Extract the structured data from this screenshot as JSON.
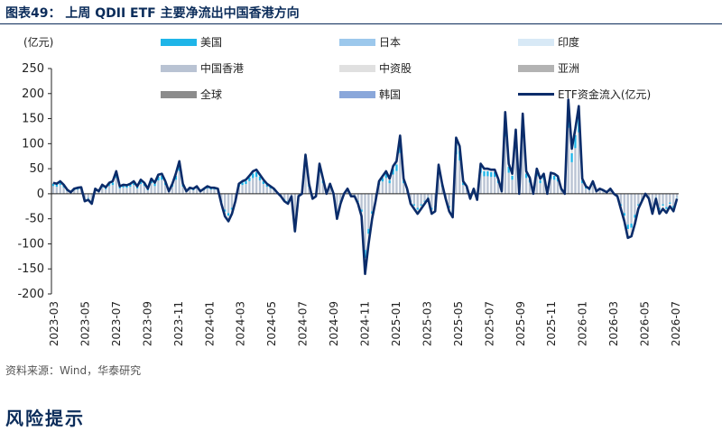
{
  "figure": {
    "title": "图表49：  上周 QDII ETF 主要净流出中国香港方向",
    "source": "资料来源：Wind，华泰研究",
    "risk_heading": "风险提示"
  },
  "colors": {
    "us": "#1fb5e8",
    "japan": "#9cc8ec",
    "india": "#d8e9f6",
    "hongkong": "#b9c3d3",
    "china": "#e0e0e0",
    "asia": "#b3b3b3",
    "global": "#8c8c8c",
    "korea": "#8aa7da",
    "flow_line": "#0b2c6a",
    "axis": "#222222"
  },
  "chart_data": {
    "type": "bar",
    "ylabel": "(亿元)",
    "ylim": [
      -200,
      250
    ],
    "yticks": [
      250,
      200,
      150,
      100,
      50,
      0,
      -50,
      -100,
      -150,
      -200
    ],
    "grid": false,
    "legend_position": "top",
    "x_tick_labels": [
      "2023-03",
      "2023-05",
      "2023-07",
      "2023-09",
      "2023-11",
      "2024-01",
      "2024-03",
      "2024-05",
      "2024-07",
      "2024-09",
      "2024-11",
      "2025-01",
      "2025-03",
      "2025-05",
      "2025-07",
      "2025-09",
      "2025-11",
      "2026-01",
      "2026-03",
      "2026-05",
      "2026-07"
    ],
    "weeks_total": 180,
    "tick_every_weeks": 8.6,
    "series": [
      {
        "name": "美国",
        "key": "us"
      },
      {
        "name": "日本",
        "key": "japan"
      },
      {
        "name": "印度",
        "key": "india"
      },
      {
        "name": "中国香港",
        "key": "hongkong"
      },
      {
        "name": "中资股",
        "key": "china"
      },
      {
        "name": "亚洲",
        "key": "asia"
      },
      {
        "name": "全球",
        "key": "global"
      },
      {
        "name": "韩国",
        "key": "korea"
      },
      {
        "name": "ETF资金流入(亿元)",
        "key": "flow",
        "type": "line"
      }
    ],
    "flow": [
      22,
      20,
      25,
      18,
      8,
      3,
      10,
      12,
      13,
      -15,
      -12,
      -20,
      10,
      5,
      18,
      13,
      22,
      25,
      45,
      15,
      18,
      17,
      20,
      25,
      15,
      28,
      22,
      10,
      30,
      22,
      38,
      40,
      25,
      5,
      20,
      40,
      65,
      20,
      5,
      12,
      10,
      15,
      5,
      10,
      15,
      12,
      12,
      10,
      -20,
      -45,
      -55,
      -40,
      -15,
      20,
      25,
      28,
      36,
      45,
      48,
      38,
      28,
      20,
      15,
      10,
      2,
      -5,
      -15,
      -20,
      -5,
      -75,
      -5,
      0,
      78,
      20,
      -10,
      -5,
      60,
      30,
      0,
      20,
      0,
      -50,
      -20,
      0,
      10,
      -5,
      -5,
      -20,
      -45,
      -160,
      -100,
      -50,
      -15,
      25,
      35,
      45,
      30,
      55,
      65,
      116,
      30,
      10,
      -20,
      -30,
      -40,
      -30,
      -20,
      -10,
      -40,
      -35,
      58,
      20,
      -10,
      -35,
      -47,
      112,
      95,
      25,
      15,
      -10,
      10,
      -12,
      60,
      50,
      50,
      48,
      48,
      30,
      5,
      163,
      60,
      40,
      128,
      0,
      160,
      45,
      32,
      0,
      50,
      30,
      40,
      0,
      42,
      40,
      35,
      10,
      0,
      188,
      90,
      130,
      175,
      30,
      15,
      10,
      25,
      5,
      10,
      7,
      3,
      10,
      0,
      -5,
      -30,
      -55,
      -88,
      -85,
      -60,
      -30,
      -15,
      0,
      -10,
      -40,
      -10,
      -40,
      -30,
      -38,
      -25,
      -35,
      -10
    ]
  }
}
